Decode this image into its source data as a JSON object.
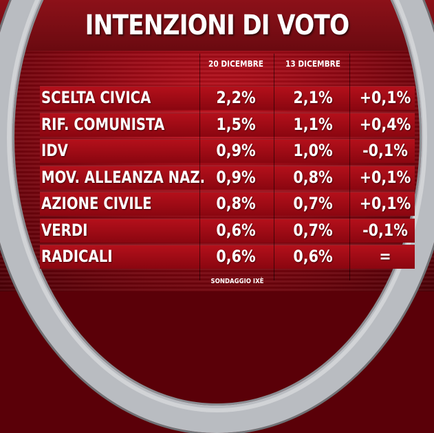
{
  "chart_data": {
    "type": "table",
    "title": "INTENZIONI DI VOTO",
    "columns": [
      "20 DICEMBRE",
      "13 DICEMBRE",
      ""
    ],
    "rows": [
      {
        "party": "SCELTA CIVICA",
        "v20": "2,2%",
        "v13": "2,1%",
        "diff": "+0,1%"
      },
      {
        "party": "RIF. COMUNISTA",
        "v20": "1,5%",
        "v13": "1,1%",
        "diff": "+0,4%"
      },
      {
        "party": "IDV",
        "v20": "0,9%",
        "v13": "1,0%",
        "diff": "-0,1%"
      },
      {
        "party": "MOV. ALLEANZA NAZ.",
        "v20": "0,9%",
        "v13": "0,8%",
        "diff": "+0,1%"
      },
      {
        "party": "AZIONE CIVILE",
        "v20": "0,8%",
        "v13": "0,7%",
        "diff": "+0,1%"
      },
      {
        "party": "VERDI",
        "v20": "0,6%",
        "v13": "0,7%",
        "diff": "-0,1%"
      },
      {
        "party": "RADICALI",
        "v20": "0,6%",
        "v13": "0,6%",
        "diff": "="
      }
    ],
    "source": "SONDAGGIO IXÈ"
  },
  "colors": {
    "background": "#8e0712",
    "ring": "#b9bcc1",
    "text": "#ffffff"
  }
}
